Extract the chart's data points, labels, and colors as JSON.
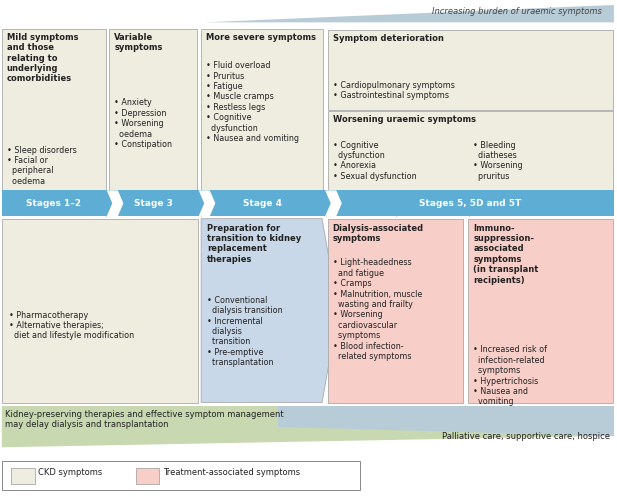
{
  "fig_width": 6.17,
  "fig_height": 4.97,
  "dpi": 100,
  "bg_color": "#ffffff",
  "arrow_color": "#5dadd4",
  "ckd_box_color": "#eeede0",
  "treatment_box_color": "#f8cfc8",
  "prep_box_color": "#c8d8e8",
  "green_banner_color": "#c8d8b0",
  "blue_banner_color": "#b8ccd8",
  "ec": "#aaaaaa",
  "lw": 0.6,
  "title_italic": "Increasing burden of uraemic symptoms",
  "stage_labels": [
    "Stages 1–2",
    "Stage 3",
    "Stage 4",
    "Stages 5, 5D and 5T"
  ]
}
